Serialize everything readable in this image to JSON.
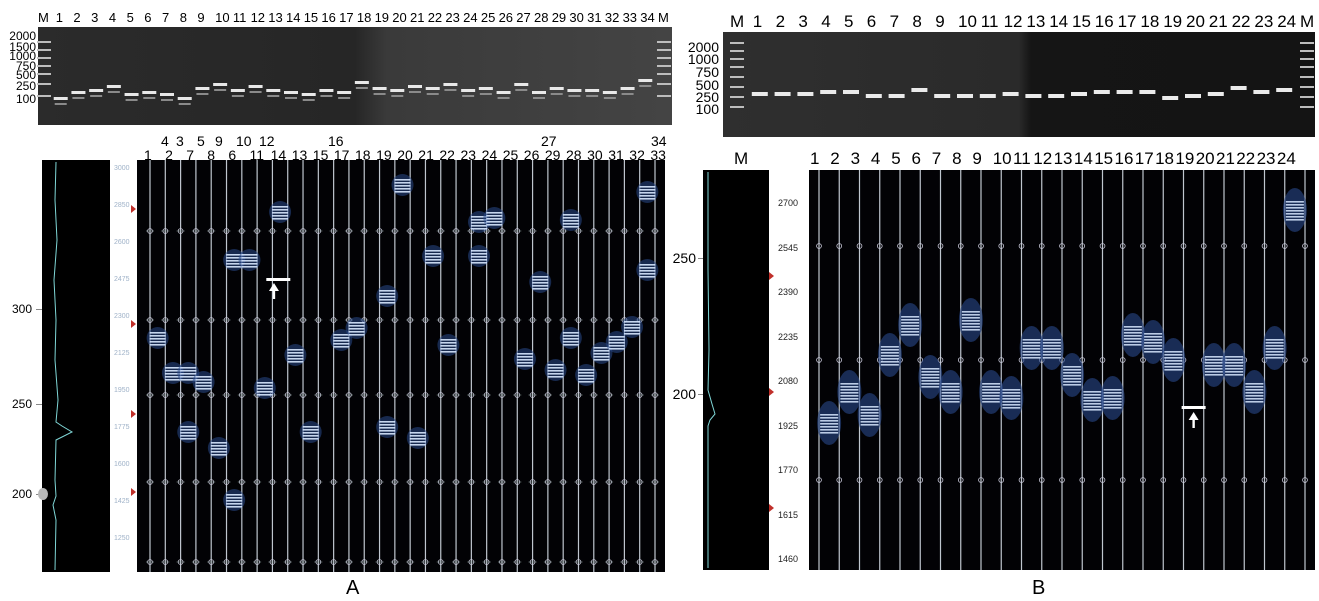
{
  "panelA": {
    "label": "A",
    "gel": {
      "lanes": [
        "M",
        "1",
        "2",
        "3",
        "4",
        "5",
        "6",
        "7",
        "8",
        "9",
        "10",
        "11",
        "12",
        "13",
        "14",
        "15",
        "16",
        "17",
        "18",
        "19",
        "20",
        "21",
        "22",
        "23",
        "24",
        "25",
        "26",
        "27",
        "28",
        "29",
        "30",
        "31",
        "32",
        "33",
        "34",
        "M"
      ],
      "markers": [
        "2000",
        "1500",
        "1000",
        "750",
        "500",
        "250",
        "100"
      ]
    },
    "ce": {
      "upper_lane_labels": [
        "4",
        "3",
        "5",
        "9",
        "10",
        "12",
        "16",
        "27",
        "34"
      ],
      "lower_lane_labels": [
        "1",
        "2",
        "7",
        "8",
        "6",
        "11",
        "14",
        "13",
        "15",
        "17",
        "18",
        "19",
        "20",
        "21",
        "22",
        "23",
        "24",
        "25",
        "26",
        "29",
        "28",
        "30",
        "31",
        "32",
        "33"
      ],
      "ladder_axis_ticks": [
        "300",
        "250",
        "200"
      ],
      "size_scale_ticks": [
        "3000",
        "2850",
        "2600",
        "2475",
        "2300",
        "2125",
        "1950",
        "1775",
        "1600",
        "1425",
        "1250"
      ]
    }
  },
  "panelB": {
    "label": "B",
    "gel": {
      "lanes": [
        "M",
        "1",
        "2",
        "3",
        "4",
        "5",
        "6",
        "7",
        "8",
        "9",
        "10",
        "11",
        "12",
        "13",
        "14",
        "15",
        "16",
        "17",
        "18",
        "19",
        "20",
        "21",
        "22",
        "23",
        "24",
        "M"
      ],
      "markers": [
        "2000",
        "1000",
        "750",
        "500",
        "250",
        "100"
      ]
    },
    "ce": {
      "lane_labels": [
        "M",
        "1",
        "2",
        "3",
        "4",
        "5",
        "6",
        "7",
        "8",
        "9",
        "10",
        "11",
        "12",
        "13",
        "14",
        "15",
        "16",
        "17",
        "18",
        "19",
        "20",
        "21",
        "22",
        "23",
        "24"
      ],
      "ladder_axis_ticks": [
        "250",
        "200"
      ],
      "size_scale_ticks": [
        "2700",
        "2545",
        "2390",
        "2235",
        "2080",
        "1925",
        "1770",
        "1615",
        "1460"
      ]
    }
  },
  "colors": {
    "gel_bg": "#1a1a1a",
    "ce_bg": "#020205",
    "band": "#d8e8ff",
    "lane_line": "#bfc6cf",
    "arrow": "#ffffff",
    "marker_red": "#c0302a"
  }
}
